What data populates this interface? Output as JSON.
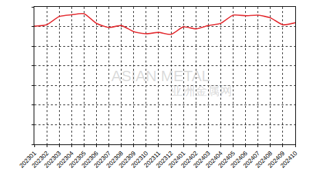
{
  "chart_data": {
    "type": "line",
    "categories": [
      "202301",
      "202302",
      "202303",
      "202304",
      "202305",
      "202306",
      "202307",
      "202308",
      "202309",
      "202310",
      "202311",
      "202312",
      "202401",
      "202402",
      "202403",
      "202404",
      "202405",
      "202406",
      "202407",
      "202408",
      "202409",
      "202410"
    ],
    "values": [
      6.02,
      6.09,
      6.51,
      6.6,
      6.65,
      6.16,
      5.95,
      6.05,
      5.74,
      5.63,
      5.7,
      5.6,
      5.98,
      5.88,
      6.05,
      6.16,
      6.58,
      6.55,
      6.58,
      6.44,
      6.09,
      6.19
    ],
    "color": "#e3262b",
    "ylim": [
      0,
      7
    ],
    "yticks": [
      0,
      1,
      2,
      3,
      4,
      5,
      6,
      7
    ],
    "grid": true,
    "tick_labels": "x",
    "annotations": [
      "ASIAN METAL",
      "亚洲金属网"
    ]
  }
}
